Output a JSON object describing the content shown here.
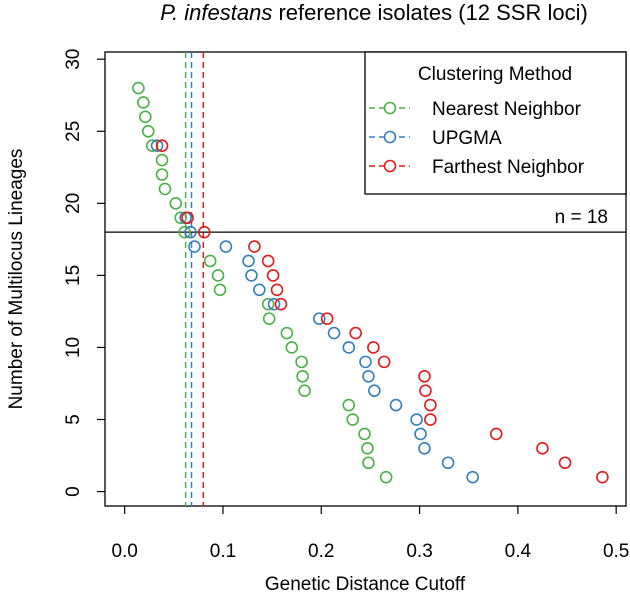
{
  "chart_data": {
    "type": "scatter",
    "title_italic": "P. infestans",
    "title_rest": " reference isolates (12 SSR loci)",
    "xlabel": "Genetic Distance Cutoff",
    "ylabel": "Number of Multilocus Lineages",
    "xlim": [
      -0.02,
      0.51
    ],
    "ylim": [
      -1,
      30.5
    ],
    "x_ticks": [
      0.0,
      0.1,
      0.2,
      0.3,
      0.4,
      0.5
    ],
    "x_tick_labels": [
      "0.0",
      "0.1",
      "0.2",
      "0.3",
      "0.4",
      "0.5"
    ],
    "y_ticks": [
      0,
      5,
      10,
      15,
      20,
      25,
      30
    ],
    "y_tick_labels": [
      "0",
      "5",
      "10",
      "15",
      "20",
      "25",
      "30"
    ],
    "grid": false,
    "legend": {
      "title": "Clustering Method",
      "position": "top-right"
    },
    "hline": {
      "y": 18,
      "label": "n = 18"
    },
    "series": [
      {
        "name": "Nearest Neighbor",
        "color": "#4daf4a",
        "cutoff": 0.062,
        "points": [
          [
            0.014,
            28
          ],
          [
            0.019,
            27
          ],
          [
            0.021,
            26
          ],
          [
            0.024,
            25
          ],
          [
            0.028,
            24
          ],
          [
            0.038,
            23
          ],
          [
            0.038,
            22
          ],
          [
            0.041,
            21
          ],
          [
            0.052,
            20
          ],
          [
            0.057,
            19
          ],
          [
            0.061,
            18
          ],
          [
            0.087,
            16
          ],
          [
            0.095,
            15
          ],
          [
            0.097,
            14
          ],
          [
            0.146,
            13
          ],
          [
            0.147,
            12
          ],
          [
            0.165,
            11
          ],
          [
            0.17,
            10
          ],
          [
            0.18,
            9
          ],
          [
            0.181,
            8
          ],
          [
            0.183,
            7
          ],
          [
            0.228,
            6
          ],
          [
            0.232,
            5
          ],
          [
            0.244,
            4
          ],
          [
            0.247,
            3
          ],
          [
            0.248,
            2
          ],
          [
            0.266,
            1
          ]
        ]
      },
      {
        "name": "UPGMA",
        "color": "#377eb8",
        "cutoff": 0.068,
        "points": [
          [
            0.033,
            24
          ],
          [
            0.062,
            19
          ],
          [
            0.067,
            18
          ],
          [
            0.071,
            17
          ],
          [
            0.103,
            17
          ],
          [
            0.126,
            16
          ],
          [
            0.129,
            15
          ],
          [
            0.137,
            14
          ],
          [
            0.152,
            13
          ],
          [
            0.198,
            12
          ],
          [
            0.213,
            11
          ],
          [
            0.228,
            10
          ],
          [
            0.245,
            9
          ],
          [
            0.248,
            8
          ],
          [
            0.254,
            7
          ],
          [
            0.276,
            6
          ],
          [
            0.297,
            5
          ],
          [
            0.301,
            4
          ],
          [
            0.305,
            3
          ],
          [
            0.329,
            2
          ],
          [
            0.354,
            1
          ]
        ]
      },
      {
        "name": "Farthest Neighbor",
        "color": "#e41a1c",
        "cutoff": 0.08,
        "points": [
          [
            0.038,
            24
          ],
          [
            0.064,
            19
          ],
          [
            0.081,
            18
          ],
          [
            0.132,
            17
          ],
          [
            0.146,
            16
          ],
          [
            0.151,
            15
          ],
          [
            0.155,
            14
          ],
          [
            0.159,
            13
          ],
          [
            0.206,
            12
          ],
          [
            0.235,
            11
          ],
          [
            0.253,
            10
          ],
          [
            0.264,
            9
          ],
          [
            0.305,
            8
          ],
          [
            0.306,
            7
          ],
          [
            0.311,
            6
          ],
          [
            0.311,
            5
          ],
          [
            0.378,
            4
          ],
          [
            0.425,
            3
          ],
          [
            0.448,
            2
          ],
          [
            0.486,
            1
          ]
        ]
      }
    ]
  }
}
